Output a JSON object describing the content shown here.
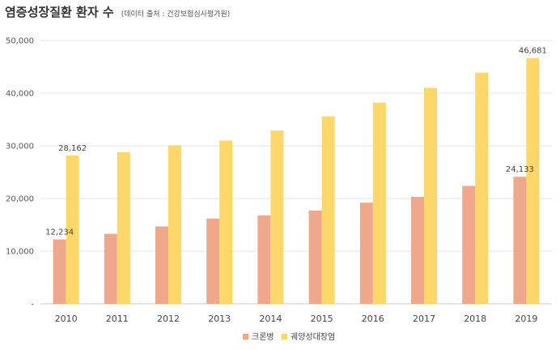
{
  "title": "염증성장질환 환자 수",
  "subtitle": "(데이터 출처 : 건강보험심사평가원)",
  "chart_data": {
    "type": "bar",
    "categories": [
      "2010",
      "2011",
      "2012",
      "2013",
      "2014",
      "2015",
      "2016",
      "2017",
      "2018",
      "2019"
    ],
    "series": [
      {
        "name": "크론병",
        "color": "#EFA88C",
        "values": [
          12234,
          13300,
          14700,
          16200,
          16800,
          17700,
          19200,
          20300,
          22400,
          24133
        ]
      },
      {
        "name": "궤양성대장염",
        "color": "#FDD76A",
        "values": [
          28162,
          28800,
          30100,
          31000,
          32900,
          35600,
          38200,
          41000,
          43900,
          46681
        ]
      }
    ],
    "data_labels": [
      {
        "series": 0,
        "index": 0,
        "text": "12,234"
      },
      {
        "series": 1,
        "index": 0,
        "text": "28,162"
      },
      {
        "series": 0,
        "index": 9,
        "text": "24,133"
      },
      {
        "series": 1,
        "index": 9,
        "text": "46,681"
      }
    ],
    "yticks": [
      0,
      10000,
      20000,
      30000,
      40000,
      50000
    ],
    "ytick_labels": [
      "-",
      "10,000",
      "20,000",
      "30,000",
      "40,000",
      "50,000"
    ],
    "ylim": [
      0,
      50000
    ],
    "grid": true,
    "legend_position": "bottom-center"
  }
}
